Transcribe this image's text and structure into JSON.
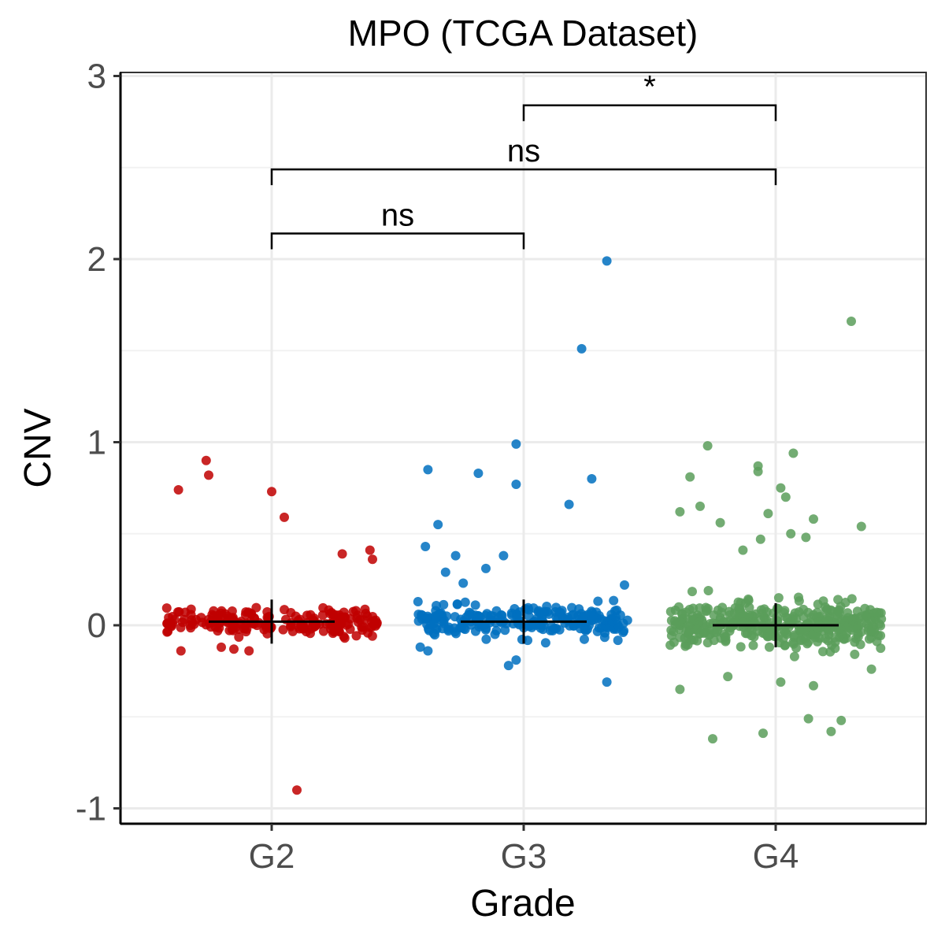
{
  "chart_data": {
    "type": "scatter",
    "subtype": "jittered strip plot with median bars and significance brackets",
    "title": "MPO (TCGA Dataset)",
    "xlabel": "Grade",
    "ylabel": "CNV",
    "categories": [
      "G2",
      "G3",
      "G4"
    ],
    "ylim": [
      -1.1,
      3.0
    ],
    "yticks": [
      -1,
      0,
      1,
      2,
      3
    ],
    "grid": true,
    "legend": "none",
    "colors": {
      "G2": "#C00000",
      "G3": "#0070C0",
      "G4": "#5A9E5A"
    },
    "series": [
      {
        "category": "G2",
        "n_points": 195,
        "median": 0.02,
        "outliers": [
          {
            "jitter": -0.37,
            "y": 0.74
          },
          {
            "jitter": -0.26,
            "y": 0.9
          },
          {
            "jitter": -0.25,
            "y": 0.82
          },
          {
            "jitter": 0.0,
            "y": 0.73
          },
          {
            "jitter": 0.05,
            "y": 0.59
          },
          {
            "jitter": 0.28,
            "y": 0.39
          },
          {
            "jitter": 0.39,
            "y": 0.41
          },
          {
            "jitter": 0.4,
            "y": 0.36
          },
          {
            "jitter": -0.36,
            "y": -0.14
          },
          {
            "jitter": -0.2,
            "y": -0.12
          },
          {
            "jitter": -0.15,
            "y": -0.13
          },
          {
            "jitter": -0.09,
            "y": -0.14
          },
          {
            "jitter": 0.29,
            "y": -0.07
          },
          {
            "jitter": 0.1,
            "y": -0.9
          }
        ]
      },
      {
        "category": "G3",
        "n_points": 230,
        "median": 0.02,
        "outliers": [
          {
            "jitter": -0.38,
            "y": 0.85
          },
          {
            "jitter": -0.18,
            "y": 0.83
          },
          {
            "jitter": -0.03,
            "y": 0.99
          },
          {
            "jitter": -0.03,
            "y": 0.77
          },
          {
            "jitter": 0.33,
            "y": 1.99
          },
          {
            "jitter": 0.23,
            "y": 1.51
          },
          {
            "jitter": 0.27,
            "y": 0.8
          },
          {
            "jitter": 0.18,
            "y": 0.66
          },
          {
            "jitter": -0.34,
            "y": 0.55
          },
          {
            "jitter": -0.39,
            "y": 0.43
          },
          {
            "jitter": -0.27,
            "y": 0.38
          },
          {
            "jitter": -0.08,
            "y": 0.38
          },
          {
            "jitter": -0.15,
            "y": 0.31
          },
          {
            "jitter": -0.31,
            "y": 0.29
          },
          {
            "jitter": -0.24,
            "y": 0.23
          },
          {
            "jitter": 0.4,
            "y": 0.22
          },
          {
            "jitter": -0.38,
            "y": -0.14
          },
          {
            "jitter": -0.03,
            "y": -0.19
          },
          {
            "jitter": -0.06,
            "y": -0.22
          },
          {
            "jitter": 0.33,
            "y": -0.31
          }
        ]
      },
      {
        "category": "G4",
        "n_points": 420,
        "median": 0.0,
        "outliers": [
          {
            "jitter": 0.3,
            "y": 1.66
          },
          {
            "jitter": -0.27,
            "y": 0.98
          },
          {
            "jitter": -0.34,
            "y": 0.81
          },
          {
            "jitter": -0.07,
            "y": 0.87
          },
          {
            "jitter": -0.07,
            "y": 0.84
          },
          {
            "jitter": 0.07,
            "y": 0.94
          },
          {
            "jitter": 0.02,
            "y": 0.75
          },
          {
            "jitter": 0.04,
            "y": 0.7
          },
          {
            "jitter": -0.38,
            "y": 0.62
          },
          {
            "jitter": -0.3,
            "y": 0.65
          },
          {
            "jitter": -0.22,
            "y": 0.56
          },
          {
            "jitter": -0.03,
            "y": 0.61
          },
          {
            "jitter": 0.15,
            "y": 0.58
          },
          {
            "jitter": 0.34,
            "y": 0.54
          },
          {
            "jitter": -0.13,
            "y": 0.41
          },
          {
            "jitter": -0.06,
            "y": 0.47
          },
          {
            "jitter": 0.06,
            "y": 0.5
          },
          {
            "jitter": 0.12,
            "y": 0.48
          },
          {
            "jitter": -0.05,
            "y": -0.59
          },
          {
            "jitter": -0.25,
            "y": -0.62
          },
          {
            "jitter": 0.13,
            "y": -0.51
          },
          {
            "jitter": 0.26,
            "y": -0.52
          },
          {
            "jitter": 0.22,
            "y": -0.58
          },
          {
            "jitter": 0.02,
            "y": -0.31
          },
          {
            "jitter": 0.15,
            "y": -0.33
          },
          {
            "jitter": -0.19,
            "y": -0.28
          },
          {
            "jitter": -0.38,
            "y": -0.35
          },
          {
            "jitter": 0.38,
            "y": -0.24
          }
        ]
      }
    ],
    "comparisons": [
      {
        "from": "G2",
        "to": "G3",
        "label": "ns",
        "y": 2.14
      },
      {
        "from": "G2",
        "to": "G4",
        "label": "ns",
        "y": 2.49
      },
      {
        "from": "G3",
        "to": "G4",
        "label": "*",
        "y": 2.84
      }
    ]
  }
}
